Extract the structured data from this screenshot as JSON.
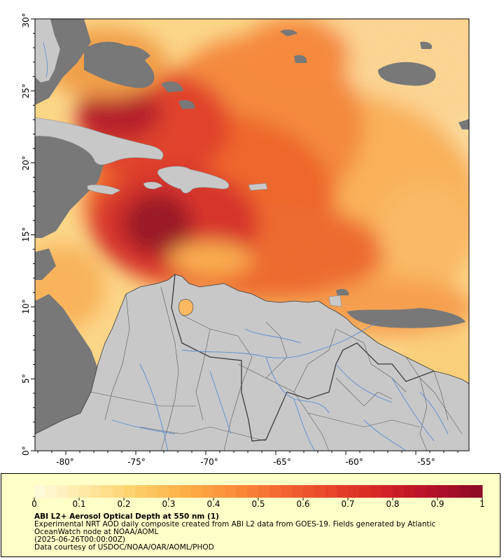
{
  "map": {
    "lon_ticks": [
      "-80°",
      "-75°",
      "-70°",
      "-65°",
      "-60°",
      "-55°"
    ],
    "lat_ticks": [
      "0°",
      "5°",
      "10°",
      "15°",
      "20°",
      "25°",
      "30°"
    ],
    "lon_range": [
      -82.2,
      -51.2
    ],
    "lat_range": [
      0,
      30
    ],
    "colors": {
      "land": "#c8c8c8",
      "no_data": "#787878",
      "rivers": "#5b8fd0",
      "borders": "#3a3a3a"
    }
  },
  "colorbar": {
    "labels": [
      "0",
      "0.1",
      "0.2",
      "0.3",
      "0.4",
      "0.5",
      "0.6",
      "0.7",
      "0.8",
      "0.9",
      "1"
    ],
    "range": [
      0,
      1
    ],
    "colors": [
      "#fffbe0",
      "#ffe9a6",
      "#fed16a",
      "#fdb048",
      "#fb8d3a",
      "#f46530",
      "#e7432a",
      "#d42424",
      "#b5102a",
      "#8a0a26"
    ]
  },
  "caption": {
    "title": "ABI L2+ Aerosol Optical Depth at 550 nm (1)",
    "description": "Experimental NRT AOD daily composite created from ABI L2 data from GOES-19. Fields generated by Atlantic OceanWatch node at NOAA/AOML",
    "timestamp": "(2025-06-26T00:00:00Z)",
    "credit": "Data courtesy of USDOC/NOAA/OAR/AOML/PHOD"
  }
}
